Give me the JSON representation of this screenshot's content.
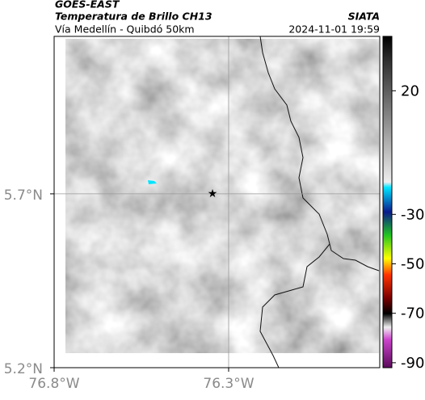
{
  "header": {
    "satellite": "GOES-EAST",
    "product": "Temperatura de Brillo CH13",
    "region": "Vía Medellín - Quibdó 50km",
    "source": "SIATA",
    "timestamp": "2024-11-01 19:59"
  },
  "map": {
    "xlim": [
      -76.8,
      -75.867
    ],
    "ylim": [
      5.2,
      6.153
    ],
    "xticks": [
      {
        "value": -76.8,
        "label": "76.8°W"
      },
      {
        "value": -76.3,
        "label": "76.3°W"
      }
    ],
    "yticks": [
      {
        "value": 5.7,
        "label": "5.7°N"
      },
      {
        "value": 5.2,
        "label": "5.2°N"
      }
    ],
    "grid": true
  },
  "colorbar": {
    "lim": [
      -92,
      42
    ],
    "ticks": [
      20,
      -30,
      -50,
      -70,
      -90
    ]
  }
}
